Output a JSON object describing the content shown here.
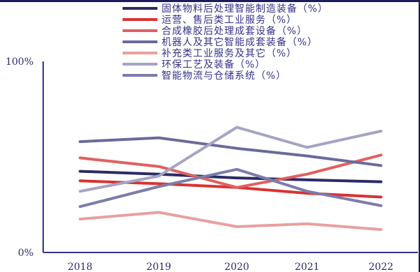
{
  "chart_data": {
    "type": "line",
    "categories": [
      "2018",
      "2019",
      "2020",
      "2021",
      "2022"
    ],
    "ylim": [
      0,
      100
    ],
    "ytick_labels": [
      "0%",
      "100%"
    ],
    "grid": false,
    "legend_position": "top",
    "series": [
      {
        "name": "固体物料后处理智能制造装备（%）",
        "color": "#2b2b66",
        "values": [
          42.5,
          41.0,
          39.0,
          38.0,
          37.0
        ]
      },
      {
        "name": "运营、售后类工业服务（%）",
        "color": "#d93232",
        "values": [
          37.5,
          36.0,
          34.0,
          31.0,
          29.0
        ]
      },
      {
        "name": "合成橡胶后处理成套设备（%）",
        "color": "#e06060",
        "values": [
          49.5,
          45.0,
          34.0,
          41.0,
          51.0
        ]
      },
      {
        "name": "机器人及其它智能成套装备（%）",
        "color": "#6a6a9c",
        "values": [
          58.0,
          60.0,
          54.5,
          50.5,
          45.5
        ]
      },
      {
        "name": "补充类工业服务及其它（%）",
        "color": "#e8a0a0",
        "values": [
          17.5,
          21.0,
          13.5,
          15.0,
          12.0
        ]
      },
      {
        "name": "环保工艺及装备（%）",
        "color": "#a4a4c4",
        "values": [
          32.0,
          40.0,
          65.5,
          55.0,
          63.5
        ]
      },
      {
        "name": "智能物流与仓储系统（%）",
        "color": "#7c7cac",
        "values": [
          24.0,
          34.5,
          43.5,
          32.0,
          24.5
        ]
      }
    ]
  }
}
